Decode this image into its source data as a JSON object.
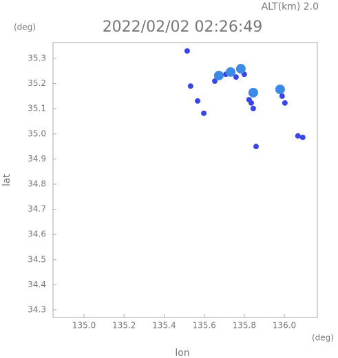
{
  "chart_data": {
    "type": "scatter",
    "title": "2022/02/02 02:26:49",
    "subtitle": "ALT(km)  2.0",
    "x_label": "lon",
    "y_label": "lat",
    "x_unit": "(deg)",
    "y_unit": "(deg)",
    "xlim": [
      134.845,
      136.165
    ],
    "ylim": [
      34.27,
      35.363
    ],
    "xticks": [
      {
        "value": 135.0,
        "label": "135.0"
      },
      135.2,
      135.4,
      135.6,
      135.8,
      {
        "value": 136.0,
        "label": "136.0"
      }
    ],
    "yticks": [
      34.3,
      34.4,
      34.5,
      34.6,
      34.7,
      34.8,
      34.9,
      {
        "value": 35.0,
        "label": "35.0"
      },
      35.1,
      35.2,
      35.3
    ],
    "series": [
      {
        "color": "#3a45e6",
        "x": [
          135.515,
          135.532,
          135.567,
          135.598,
          135.653,
          135.708,
          135.759,
          135.8,
          135.835,
          135.845,
          135.824,
          135.989,
          136.003,
          136.068,
          136.092,
          135.859
        ],
        "values": [
          35.33,
          35.19,
          35.131,
          35.082,
          35.21,
          35.237,
          35.226,
          35.237,
          35.123,
          35.101,
          35.136,
          35.15,
          35.123,
          34.992,
          34.986,
          34.95
        ]
      },
      {
        "color": "#3d8ae6",
        "x": [
          135.673,
          135.732,
          135.783,
          135.845,
          135.979
        ],
        "values": [
          35.232,
          35.246,
          35.259,
          35.164,
          35.177
        ]
      }
    ]
  }
}
